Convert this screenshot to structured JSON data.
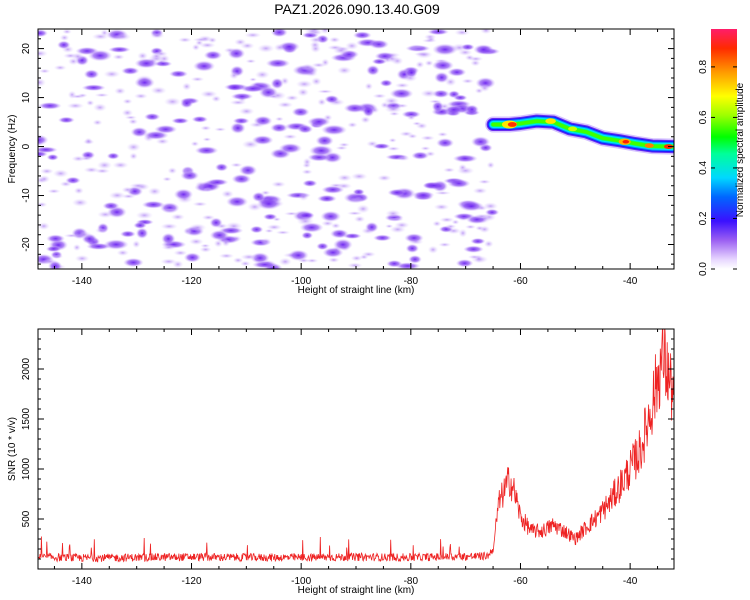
{
  "title": "PAZ1.2026.090.13.40.G09",
  "chart_data": [
    {
      "type": "heatmap",
      "title": "PAZ1.2026.090.13.40.G09",
      "xlabel": "Height of straight line (km)",
      "ylabel": "Frequency (Hz)",
      "xlim": [
        -148,
        -32
      ],
      "ylim": [
        -25,
        24
      ],
      "xticks": [
        -140,
        -120,
        -100,
        -80,
        -60,
        -40
      ],
      "yticks": [
        20,
        10,
        0,
        -10,
        -20
      ],
      "colorbar": {
        "label": "Normalized spectral amplitude",
        "range": [
          0,
          0.95
        ],
        "ticks": [
          0.0,
          0.2,
          0.4,
          0.6,
          0.8
        ]
      },
      "signal_track": {
        "description": "strong coherent signal band",
        "x": [
          -65,
          -62,
          -60,
          -57,
          -54,
          -51,
          -48,
          -45,
          -42,
          -39,
          -36,
          -32
        ],
        "frequency": [
          4.5,
          4.5,
          4.7,
          5.2,
          5.0,
          3.6,
          3.0,
          1.7,
          1.2,
          0.6,
          0.1,
          0.0
        ]
      },
      "noise_region": {
        "x_range": [
          -148,
          -65
        ],
        "frequency_range": [
          -25,
          24
        ],
        "amplitude_range": [
          0.0,
          0.2
        ]
      }
    },
    {
      "type": "line",
      "xlabel": "Height of straight line (km)",
      "ylabel": "SNR (10 * v/v)",
      "xlim": [
        -148,
        -32
      ],
      "ylim": [
        0,
        2400
      ],
      "xticks": [
        -140,
        -120,
        -100,
        -80,
        -60,
        -40
      ],
      "yticks": [
        500,
        1000,
        1500,
        2000
      ],
      "series": [
        {
          "name": "SNR",
          "color": "#ee2222",
          "x": [
            -148,
            -140,
            -130,
            -120,
            -110,
            -100,
            -90,
            -80,
            -70,
            -66,
            -65,
            -64,
            -62,
            -61,
            -60,
            -58,
            -56,
            -54,
            -52,
            -50,
            -48,
            -46,
            -44,
            -42,
            -40,
            -38,
            -36,
            -34,
            -32
          ],
          "values": [
            120,
            110,
            115,
            120,
            115,
            115,
            120,
            115,
            125,
            130,
            200,
            650,
            900,
            750,
            520,
            380,
            380,
            440,
            380,
            300,
            420,
            520,
            650,
            820,
            1000,
            1200,
            1650,
            2150,
            1700
          ]
        }
      ]
    }
  ]
}
